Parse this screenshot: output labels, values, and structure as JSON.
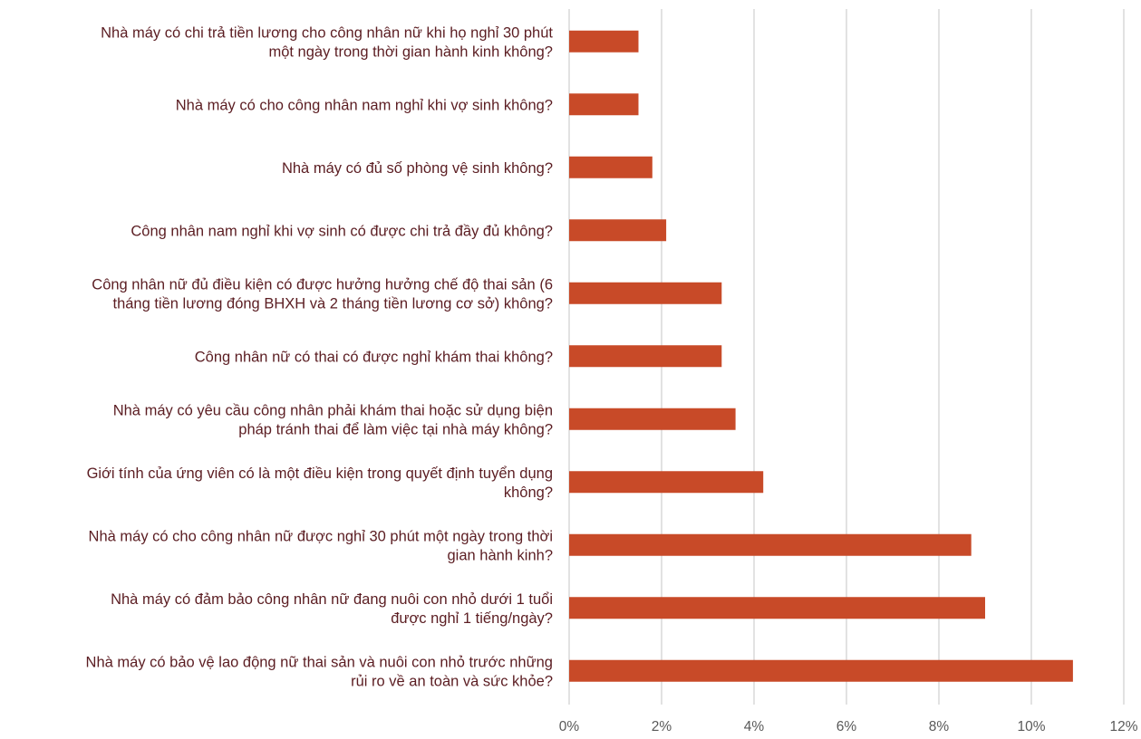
{
  "chart_data": {
    "type": "bar",
    "orientation": "horizontal",
    "title": "",
    "xlabel": "",
    "ylabel": "",
    "categories": [
      [
        "Nhà máy có chi trả tiền lương cho công nhân nữ khi họ nghỉ 30 phút",
        "một ngày trong thời gian hành kinh không?"
      ],
      [
        "Nhà máy có cho công nhân nam nghỉ khi vợ sinh không?"
      ],
      [
        "Nhà máy có đủ số phòng vệ sinh không?"
      ],
      [
        "Công nhân nam nghỉ khi vợ sinh có được chi trả đầy đủ không?"
      ],
      [
        "Công nhân nữ đủ điều kiện có được hưởng hưởng chế độ thai sản (6",
        "tháng tiền lương đóng BHXH và 2 tháng tiền lương cơ sở) không?"
      ],
      [
        "Công nhân nữ có thai có được nghỉ khám thai không?"
      ],
      [
        "Nhà máy có yêu cầu công nhân phải khám thai hoặc sử dụng biện",
        "pháp tránh thai để làm việc tại nhà máy không?"
      ],
      [
        "Giới tính của ứng viên có là một điều kiện trong quyết định tuyển dụng",
        "không?"
      ],
      [
        "Nhà máy có cho công nhân nữ được nghỉ 30 phút một ngày trong thời",
        "gian hành kinh?"
      ],
      [
        "Nhà máy có đảm bảo công nhân nữ đang nuôi con nhỏ dưới 1 tuổi",
        "được nghỉ 1 tiếng/ngày?"
      ],
      [
        "Nhà máy có bảo vệ lao động nữ thai sản và nuôi con nhỏ trước những",
        "rủi ro về an toàn và sức khỏe?"
      ]
    ],
    "values": [
      1.5,
      1.5,
      1.8,
      2.1,
      3.3,
      3.3,
      3.6,
      4.2,
      8.7,
      9.0,
      10.9
    ],
    "value_unit": "%",
    "xlim": [
      0,
      12
    ],
    "xticks": [
      0,
      2,
      4,
      6,
      8,
      10,
      12
    ],
    "xtick_labels": [
      "0%",
      "2%",
      "4%",
      "6%",
      "8%",
      "10%",
      "12%"
    ],
    "grid": "vertical",
    "legend": "none",
    "bar_color": "#c84a28",
    "label_color": "#5b1d22",
    "grid_color": "#d9d9d9"
  }
}
